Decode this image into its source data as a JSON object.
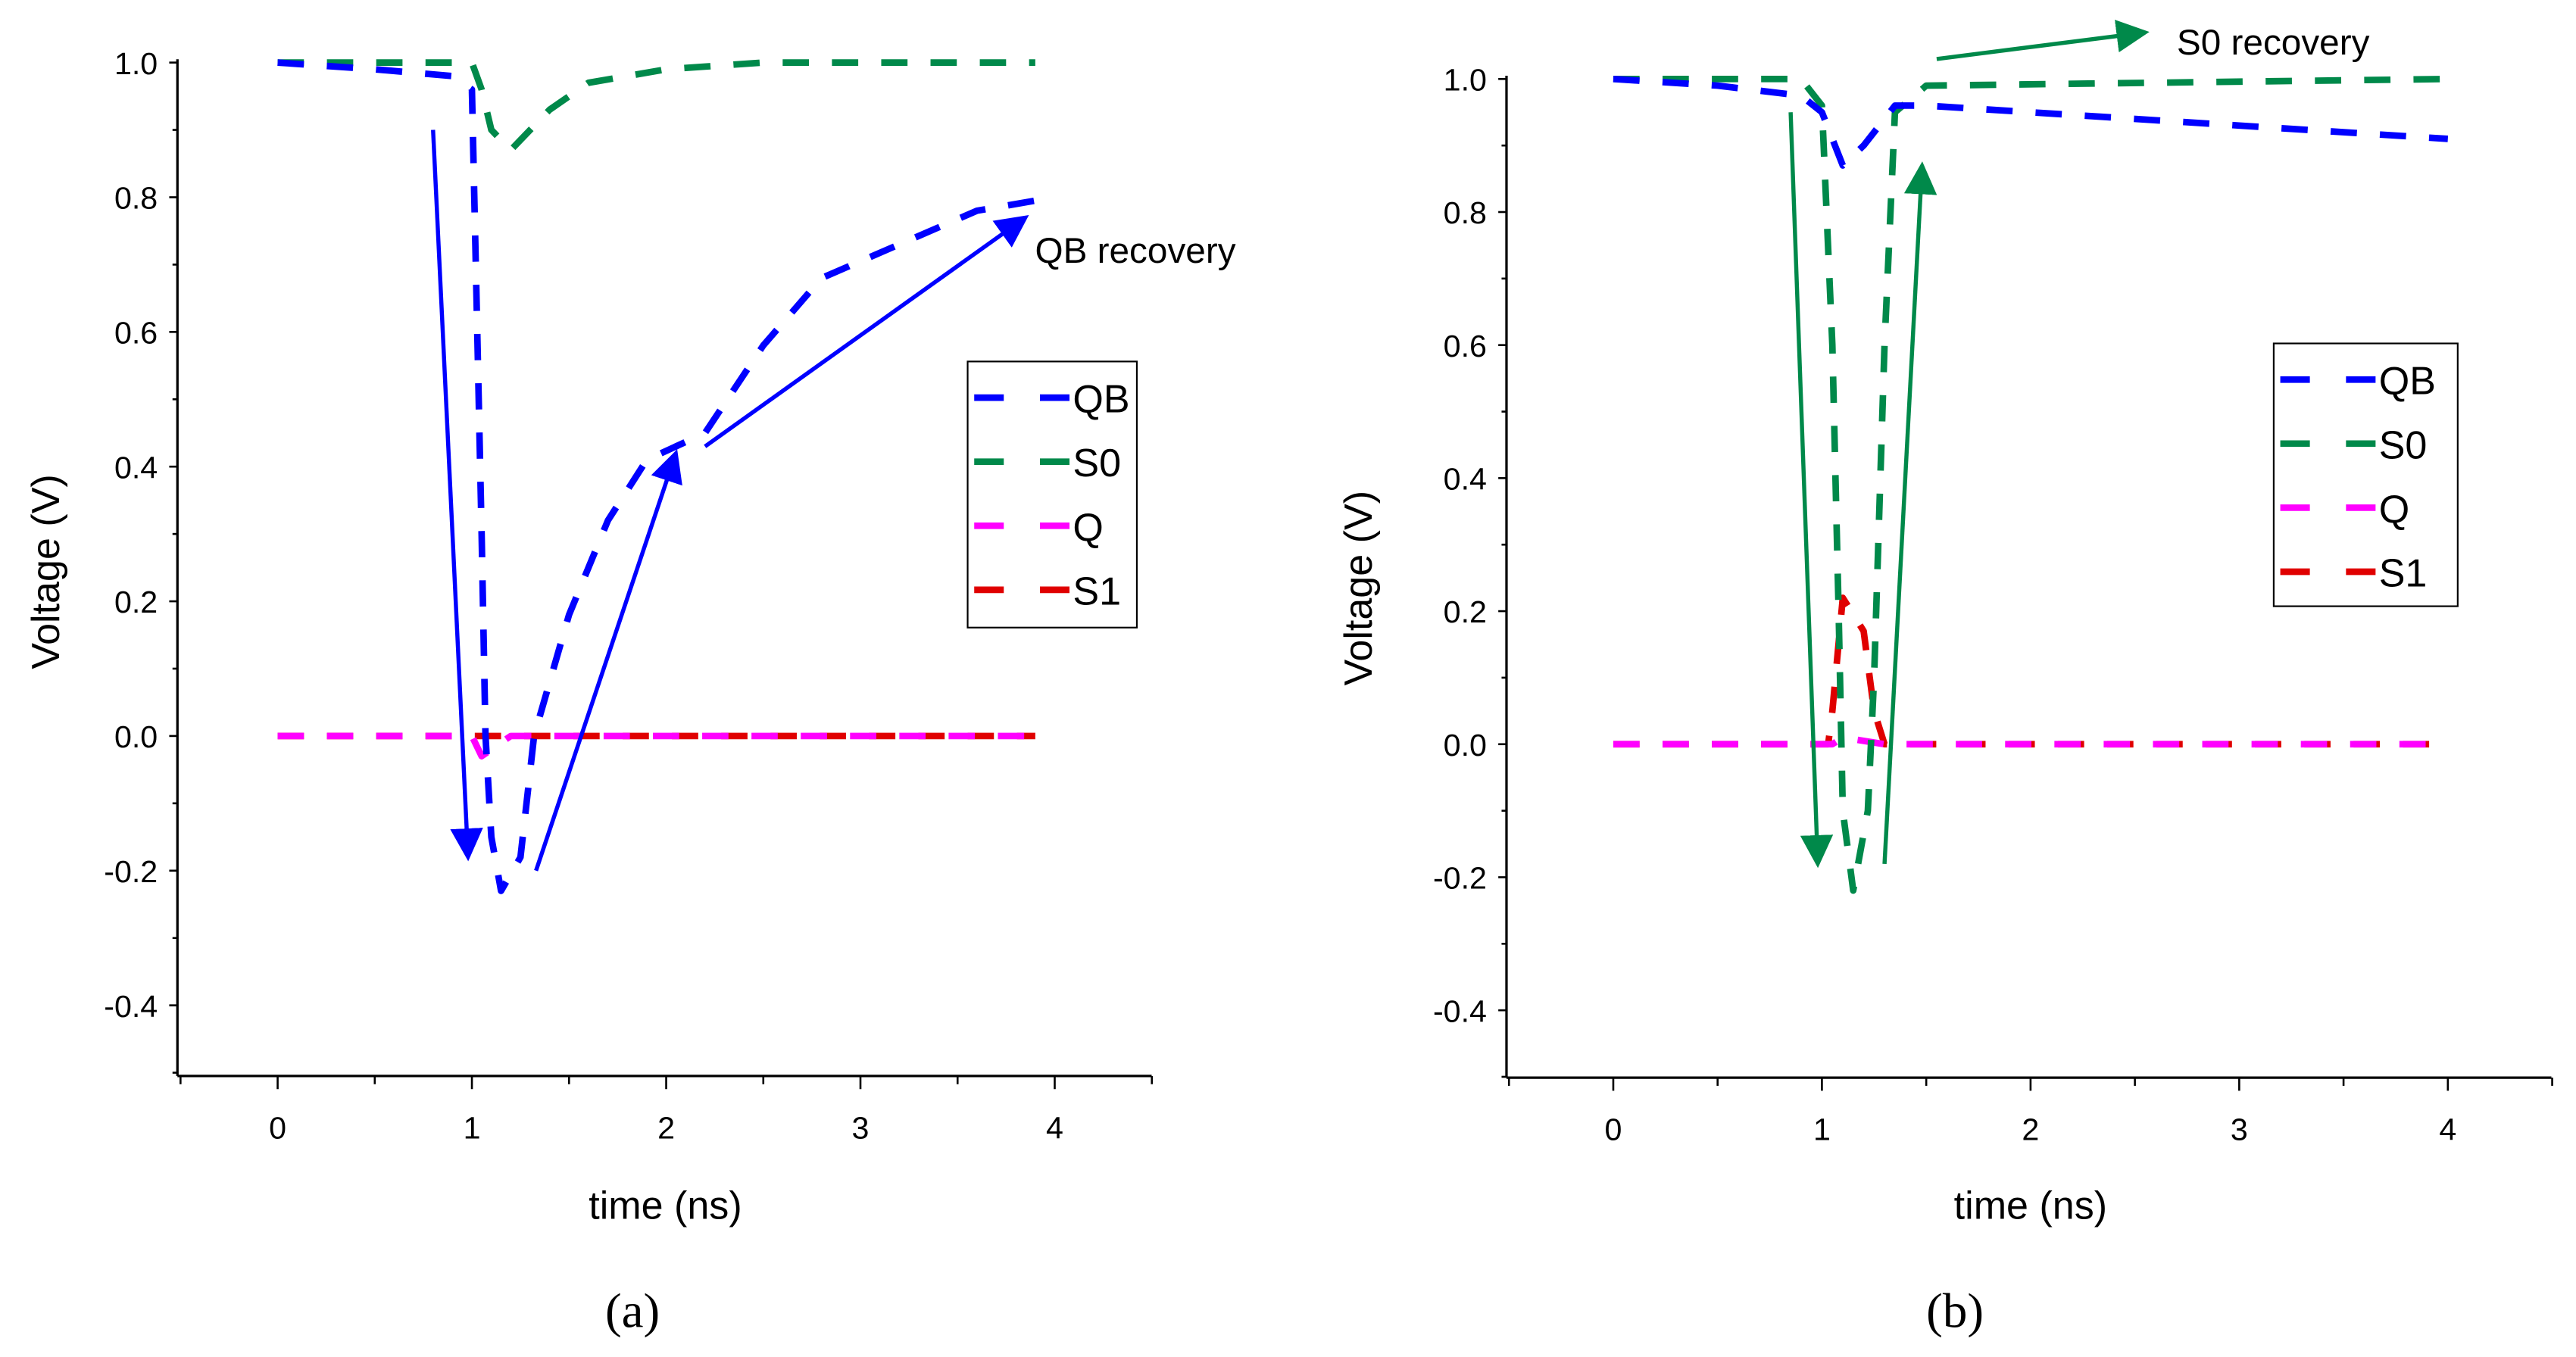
{
  "colors": {
    "QB": "#0000ff",
    "S0": "#00894a",
    "Q": "#ff00ff",
    "S1": "#e00000"
  },
  "chart_data": [
    {
      "type": "line",
      "caption": "(a)",
      "xlabel": "time (ns)",
      "ylabel": "Voltage (V)",
      "xlim": [
        -0.5,
        4.5
      ],
      "ylim": [
        -0.5,
        1.0
      ],
      "xticks": [
        "0",
        "1",
        "2",
        "3",
        "4"
      ],
      "yticks": [
        "1.0",
        "0.8",
        "0.6",
        "0.4",
        "0.2",
        "0.0",
        "-0.2",
        "-0.4"
      ],
      "legend": [
        "QB",
        "S0",
        "Q",
        "S1"
      ],
      "legend_position": "right",
      "annotation": {
        "text": "QB recovery",
        "color": "#0000ff"
      },
      "series": [
        {
          "name": "QB",
          "x": [
            0,
            0.5,
            0.9,
            1.0,
            1.02,
            1.05,
            1.07,
            1.1,
            1.15,
            1.25,
            1.32,
            1.5,
            1.7,
            1.9,
            2.2,
            2.5,
            2.8,
            3.2,
            3.6,
            4.0
          ],
          "y": [
            1,
            0.99,
            0.98,
            0.96,
            0.7,
            0.3,
            0,
            -0.15,
            -0.23,
            -0.18,
            0,
            0.18,
            0.32,
            0.41,
            0.45,
            0.58,
            0.68,
            0.73,
            0.78,
            0.8
          ]
        },
        {
          "name": "S0",
          "x": [
            0,
            1.0,
            1.05,
            1.1,
            1.2,
            1.4,
            1.6,
            2.0,
            2.5,
            3.9
          ],
          "y": [
            1,
            1,
            0.96,
            0.9,
            0.87,
            0.93,
            0.97,
            0.99,
            1,
            1
          ]
        },
        {
          "name": "Q",
          "x": [
            0,
            1.0,
            1.05,
            1.2,
            3.9
          ],
          "y": [
            0,
            0,
            -0.03,
            0,
            0
          ]
        },
        {
          "name": "S1",
          "x": [
            0,
            3.9
          ],
          "y": [
            0,
            0
          ]
        }
      ],
      "arrows": [
        {
          "from": [
            0.8,
            0.9
          ],
          "to": [
            0.98,
            -0.18
          ],
          "color": "#0000ff"
        },
        {
          "from": [
            1.33,
            -0.2
          ],
          "to": [
            2.05,
            0.42
          ],
          "color": "#0000ff"
        },
        {
          "from": [
            2.2,
            0.43
          ],
          "to": [
            3.85,
            0.77
          ],
          "color": "#0000ff"
        }
      ]
    },
    {
      "type": "line",
      "caption": "(b)",
      "xlabel": "time (ns)",
      "ylabel": "Voltage (V)",
      "xlim": [
        -0.5,
        4.5
      ],
      "ylim": [
        -0.5,
        1.0
      ],
      "xticks": [
        "0",
        "1",
        "2",
        "3",
        "4"
      ],
      "yticks": [
        "1.0",
        "0.8",
        "0.6",
        "0.4",
        "0.2",
        "0.0",
        "-0.2",
        "-0.4"
      ],
      "legend": [
        "QB",
        "S0",
        "Q",
        "S1"
      ],
      "legend_position": "right",
      "annotation": {
        "text": "S0 recovery",
        "color": "#00894a"
      },
      "series": [
        {
          "name": "QB",
          "x": [
            0,
            0.5,
            0.9,
            1.0,
            1.1,
            1.2,
            1.35,
            1.5,
            2.0,
            3.0,
            4.0
          ],
          "y": [
            1,
            0.99,
            0.975,
            0.95,
            0.87,
            0.9,
            0.96,
            0.96,
            0.95,
            0.93,
            0.91
          ]
        },
        {
          "name": "S0",
          "x": [
            0,
            0.9,
            1.0,
            1.05,
            1.08,
            1.1,
            1.15,
            1.22,
            1.25,
            1.3,
            1.35,
            1.5,
            4.0
          ],
          "y": [
            1,
            1,
            0.96,
            0.6,
            0.2,
            -0.1,
            -0.22,
            -0.1,
            0.1,
            0.6,
            0.95,
            0.99,
            1
          ]
        },
        {
          "name": "Q",
          "x": [
            0,
            1.05,
            1.1,
            1.3,
            4.0
          ],
          "y": [
            0,
            0,
            0.01,
            0,
            0
          ]
        },
        {
          "name": "S1",
          "x": [
            0,
            1.03,
            1.05,
            1.1,
            1.2,
            1.25,
            1.3,
            4.0
          ],
          "y": [
            0,
            0,
            0.05,
            0.22,
            0.17,
            0.05,
            0,
            0
          ]
        }
      ],
      "arrows": [
        {
          "from": [
            0.85,
            0.95
          ],
          "to": [
            0.98,
            -0.18
          ],
          "color": "#00894a"
        },
        {
          "from": [
            1.3,
            -0.18
          ],
          "to": [
            1.48,
            0.87
          ],
          "color": "#00894a"
        },
        {
          "from": [
            1.55,
            1.03
          ],
          "to": [
            2.55,
            1.07
          ],
          "color": "#00894a"
        }
      ]
    }
  ]
}
